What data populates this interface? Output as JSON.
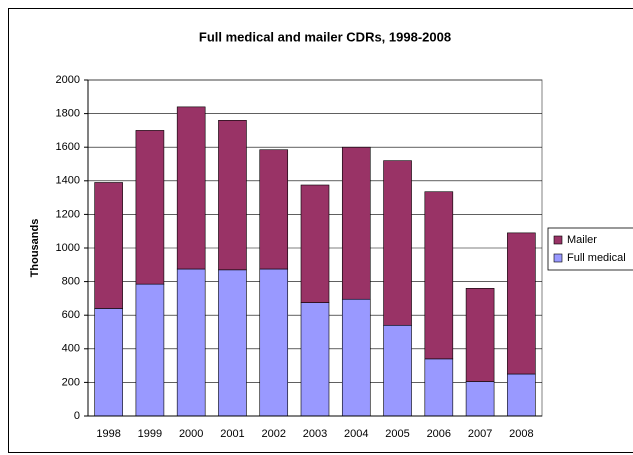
{
  "chart_data": {
    "type": "stacked_bar",
    "title": "Full medical and mailer CDRs, 1998-2008",
    "y_label": "Thousands",
    "categories": [
      "1998",
      "1999",
      "2000",
      "2001",
      "2002",
      "2003",
      "2004",
      "2005",
      "2006",
      "2007",
      "2008"
    ],
    "series": [
      {
        "name": "Full medical",
        "color": "#9999ff",
        "values": [
          640,
          785,
          875,
          870,
          875,
          675,
          695,
          540,
          340,
          205,
          250
        ]
      },
      {
        "name": "Mailer",
        "color": "#993366",
        "values": [
          750,
          915,
          965,
          890,
          710,
          700,
          905,
          980,
          995,
          555,
          840
        ]
      }
    ],
    "ylim": [
      0,
      2000
    ],
    "yticks": [
      0,
      200,
      400,
      600,
      800,
      1000,
      1200,
      1400,
      1600,
      1800,
      2000
    ],
    "grid": true,
    "legend": "right"
  }
}
